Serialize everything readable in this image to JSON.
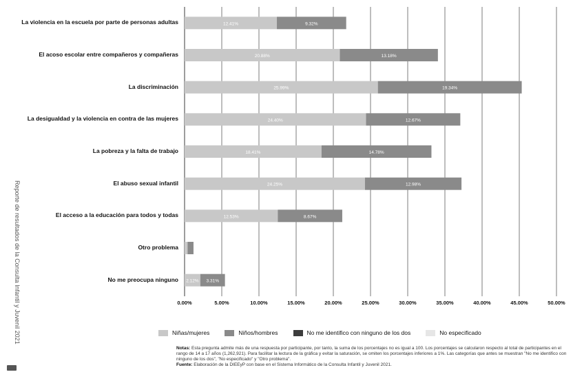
{
  "side_title": "Reporte de resultados de la Consulta Infantil y Juvenil 2021",
  "colors": {
    "ninas": "#c8c8c8",
    "ninos": "#8a8a8a",
    "no_identifico": "#3d3d3d",
    "no_especificado": "#e6e6e6",
    "grid": "#5a5a5a"
  },
  "chart_data": {
    "type": "bar",
    "orientation": "horizontal",
    "stacked": true,
    "categories": [
      "La violencia en la escuela por parte de personas adultas",
      "El acoso escolar entre compañeros y compañeras",
      "La discriminación",
      "La desigualdad y la violencia en contra de las mujeres",
      "La pobreza y la falta de trabajo",
      "El abuso sexual infantil",
      "El acceso a la educación para todos y todas",
      "Otro problema",
      "No me preocupa ninguno"
    ],
    "series": [
      {
        "name": "Niñas/mujeres",
        "values": [
          12.41,
          20.88,
          25.99,
          24.4,
          18.41,
          24.25,
          12.53,
          0.4,
          2.12
        ]
      },
      {
        "name": "Niños/hombres",
        "values": [
          9.32,
          13.18,
          19.34,
          12.67,
          14.78,
          12.98,
          8.67,
          0.8,
          3.31
        ]
      }
    ],
    "value_labels": [
      [
        "12.41%",
        "9.32%"
      ],
      [
        "20.88%",
        "13.18%"
      ],
      [
        "25.99%",
        "19.34%"
      ],
      [
        "24.40%",
        "12.67%"
      ],
      [
        "18.41%",
        "14.78%"
      ],
      [
        "24.25%",
        "12.98%"
      ],
      [
        "12.53%",
        "8.67%"
      ],
      [
        "",
        ""
      ],
      [
        "2.12%",
        "3.31%"
      ]
    ],
    "x_ticks": [
      "0.00%",
      "5.00%",
      "10.00%",
      "15.00%",
      "20.00%",
      "25.00%",
      "30.00%",
      "35.00%",
      "40.00%",
      "45.00%",
      "50.00%"
    ],
    "xlim": [
      0,
      50
    ],
    "grid": true,
    "legend": {
      "placement": "bottom",
      "entries": [
        "Niñas/mujeres",
        "Niños/hombres",
        "No me identifico con ninguno de los dos",
        "No especificado"
      ]
    }
  },
  "notes": {
    "label": "Notas:",
    "text": "Esta pregunta admite más de una respuesta por participante, por tanto, la suma de los porcentajes no es igual a 100. Los porcentajes se calcularon respecto al total de participantes en el rango de 14 a 17 años (1,262,921). Para facilitar la lectura de la gráfica y evitar la saturación, se omiten los porcentajes inferiores a 1%. Las categorías que antes se muestran \"No me identifico con ninguno de los dos\", \"No especificado\" y \"Otro problema\".",
    "source_label": "Fuente:",
    "source_text": "Elaboración de la DIEEyP con base en el Sistema Informático de la Consulta Infantil y Juvenil 2021."
  }
}
